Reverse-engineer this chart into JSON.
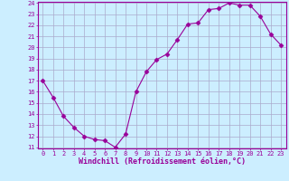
{
  "x": [
    0,
    1,
    2,
    3,
    4,
    5,
    6,
    7,
    8,
    9,
    10,
    11,
    12,
    13,
    14,
    15,
    16,
    17,
    18,
    19,
    20,
    21,
    22,
    23
  ],
  "y": [
    17,
    15.5,
    13.8,
    12.8,
    12.0,
    11.7,
    11.6,
    11.0,
    12.2,
    16.0,
    17.8,
    18.9,
    19.4,
    20.7,
    22.1,
    22.2,
    23.4,
    23.5,
    24.0,
    23.8,
    23.8,
    22.8,
    21.2,
    20.2
  ],
  "line_color": "#990099",
  "marker": "D",
  "marker_size": 2.5,
  "bg_color": "#cceeff",
  "grid_color": "#aaaacc",
  "xlabel": "Windchill (Refroidissement éolien,°C)",
  "xlabel_color": "#990099",
  "ylim_min": 11,
  "ylim_max": 24,
  "xlim_min": 0,
  "xlim_max": 23,
  "yticks": [
    11,
    12,
    13,
    14,
    15,
    16,
    17,
    18,
    19,
    20,
    21,
    22,
    23,
    24
  ],
  "xticks": [
    0,
    1,
    2,
    3,
    4,
    5,
    6,
    7,
    8,
    9,
    10,
    11,
    12,
    13,
    14,
    15,
    16,
    17,
    18,
    19,
    20,
    21,
    22,
    23
  ],
  "tick_color": "#990099",
  "spine_color": "#990099",
  "tick_fontsize": 5,
  "xlabel_fontsize": 6
}
